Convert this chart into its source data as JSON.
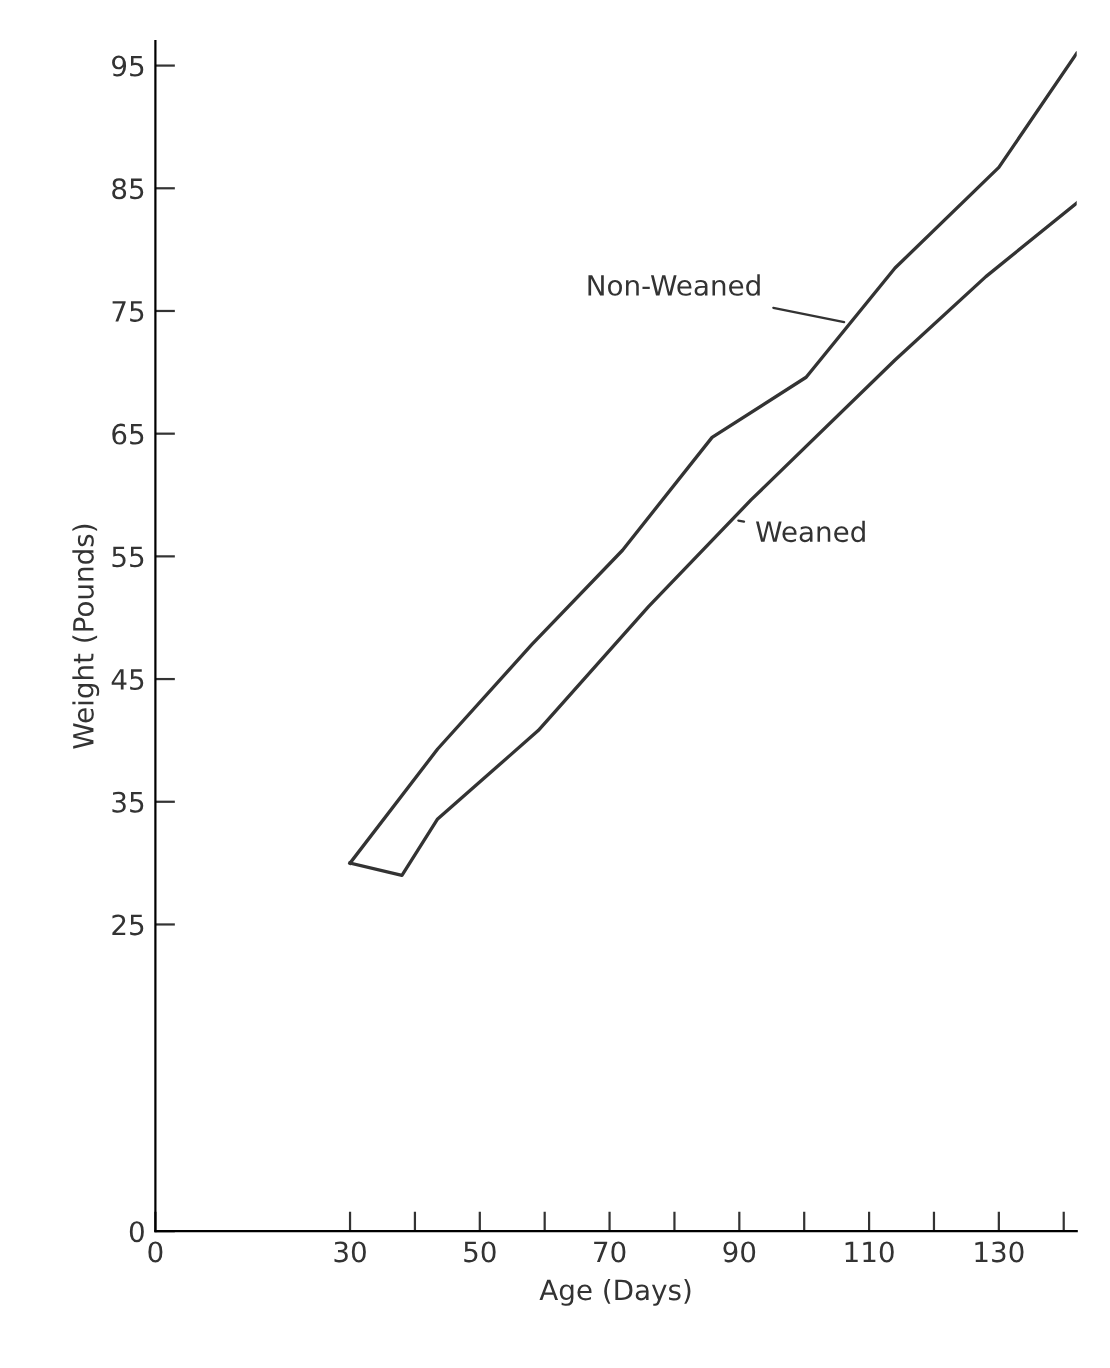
{
  "chart_data": {
    "type": "line",
    "xlabel": "Age (Days)",
    "ylabel": "Weight (Pounds)",
    "xlim": [
      0,
      142
    ],
    "ylim": [
      0,
      97
    ],
    "xticks": [
      0,
      30,
      {
        "value": 40,
        "label": null
      },
      50,
      {
        "value": 60,
        "label": null
      },
      70,
      {
        "value": 80,
        "label": null
      },
      90,
      {
        "value": 100,
        "label": null
      },
      110,
      {
        "value": 120,
        "label": null
      },
      130,
      {
        "value": 140,
        "label": null
      }
    ],
    "yticks": [
      0,
      25,
      35,
      45,
      55,
      65,
      75,
      85,
      95
    ],
    "series": [
      {
        "color": "#333333",
        "x": [
          30,
          43.5,
          58,
          72,
          85.8,
          100.3,
          114,
          130,
          142
        ],
        "values": [
          30,
          39.3,
          47.8,
          55.5,
          64.7,
          69.6,
          78.5,
          86.7,
          96
        ]
      },
      {
        "color": "#333333",
        "x": [
          30,
          38,
          43.5,
          59,
          76,
          91.8,
          114,
          128,
          142
        ],
        "values": [
          30,
          29,
          33.6,
          40.8,
          50.9,
          59.6,
          71,
          77.8,
          83.8
        ]
      }
    ],
    "annotations": [
      {
        "text": "Non-Weaned",
        "x": 107,
        "y": 74
      },
      {
        "text": "Weaned",
        "x": 89,
        "y": 58
      }
    ],
    "grid": false,
    "marker": "none",
    "line_style": "solid"
  }
}
